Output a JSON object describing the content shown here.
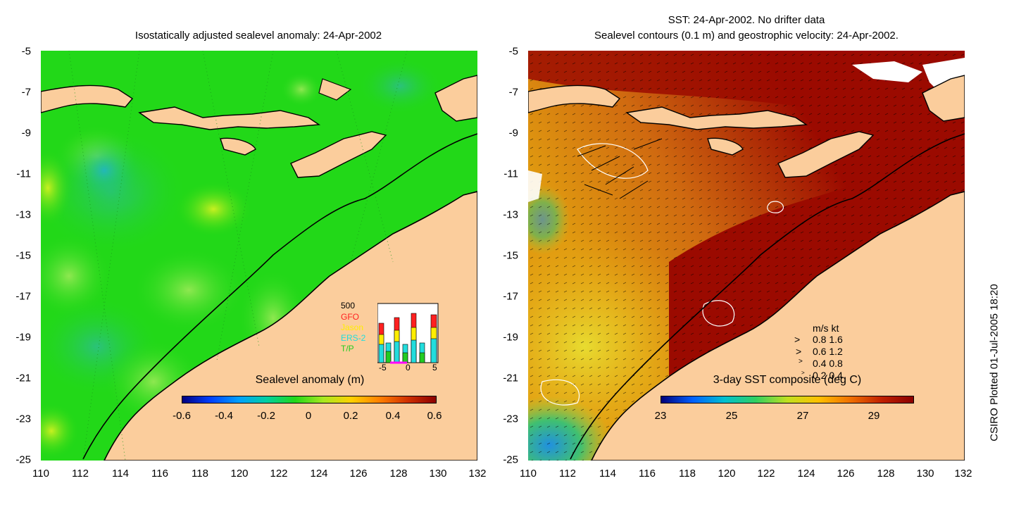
{
  "left_panel": {
    "title": "Isostatically adjusted sealevel anomaly: 24-Apr-2002",
    "colorbar_title": "Sealevel anomaly (m)",
    "colorbar_ticks": [
      "-0.6",
      "-0.4",
      "-0.2",
      "0",
      "0.2",
      "0.4",
      "0.6"
    ],
    "inset": {
      "ymax_label": "500",
      "missions": [
        {
          "name": "GFO",
          "color": "#ff2020"
        },
        {
          "name": "Jason",
          "color": "#ffee00"
        },
        {
          "name": "ERS-2",
          "color": "#22dddd"
        },
        {
          "name": "T/P",
          "color": "#22cc22"
        }
      ],
      "x_ticks": [
        "-5",
        "0",
        "5"
      ]
    }
  },
  "right_panel": {
    "title_line1": "SST: 24-Apr-2002. No drifter data",
    "title_line2": "Sealevel contours (0.1 m) and geostrophic velocity: 24-Apr-2002.",
    "colorbar_title": "3-day SST composite (deg C)",
    "colorbar_ticks": [
      "23",
      "25",
      "27",
      "29"
    ],
    "velocity_legend": {
      "header": "m/s  kt",
      "rows": [
        "0.8  1.6",
        "0.6  1.2",
        "0.4  0.8",
        "0.2  0.4"
      ]
    }
  },
  "axes": {
    "y_ticks": [
      "-5",
      "-7",
      "-9",
      "-11",
      "-13",
      "-15",
      "-17",
      "-19",
      "-21",
      "-23",
      "-25"
    ],
    "x_ticks": [
      "110",
      "112",
      "114",
      "116",
      "118",
      "120",
      "122",
      "124",
      "126",
      "128",
      "130",
      "132"
    ]
  },
  "credit": "CSIRO Plotted 01-Jul-2005 18:20",
  "colors": {
    "land": "#fbcd9c",
    "sla_ocean": "#22d818",
    "sst_warm": "#9b0a00",
    "sst_mid": "#cc4400"
  }
}
